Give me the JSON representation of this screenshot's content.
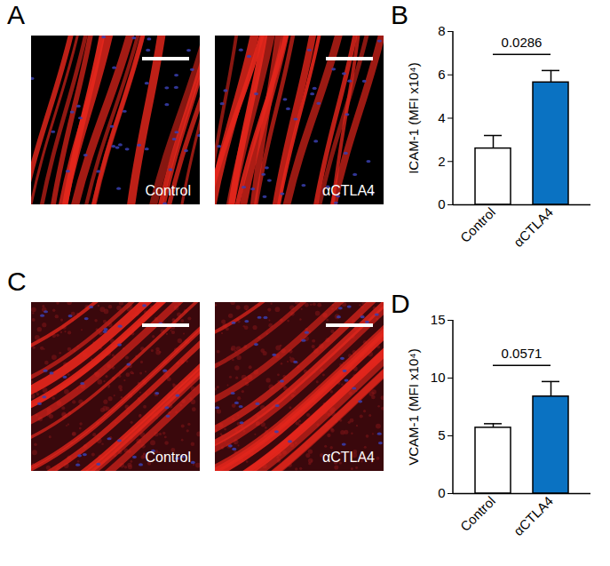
{
  "panels": [
    {
      "label": "A",
      "images": [
        "Control",
        "αCTLA4"
      ]
    },
    {
      "label": "C",
      "images": [
        "Control",
        "αCTLA4"
      ]
    }
  ],
  "chart_data": [
    {
      "type": "bar",
      "panel": "B",
      "categories": [
        "Control",
        "αCTLA4"
      ],
      "values": [
        2.6,
        5.65
      ],
      "errors": [
        0.6,
        0.55
      ],
      "colors": [
        "#ffffff",
        "#0a72c2"
      ],
      "y_label": "ICAM-1 (MFI x10⁴)",
      "ylim": [
        0,
        8
      ],
      "yticks": [
        0,
        2,
        4,
        6,
        8
      ],
      "annotations": [
        {
          "text": "0.0286",
          "between": [
            "Control",
            "αCTLA4"
          ]
        }
      ]
    },
    {
      "type": "bar",
      "panel": "D",
      "categories": [
        "Control",
        "αCTLA4"
      ],
      "values": [
        5.7,
        8.4
      ],
      "errors": [
        0.35,
        1.3
      ],
      "colors": [
        "#ffffff",
        "#0a72c2"
      ],
      "y_label": "VCAM-1 (MFI x10⁴)",
      "ylim": [
        0,
        15
      ],
      "yticks": [
        0,
        5,
        10,
        15
      ],
      "annotations": [
        {
          "text": "0.0571",
          "between": [
            "Control",
            "αCTLA4"
          ]
        }
      ]
    }
  ]
}
